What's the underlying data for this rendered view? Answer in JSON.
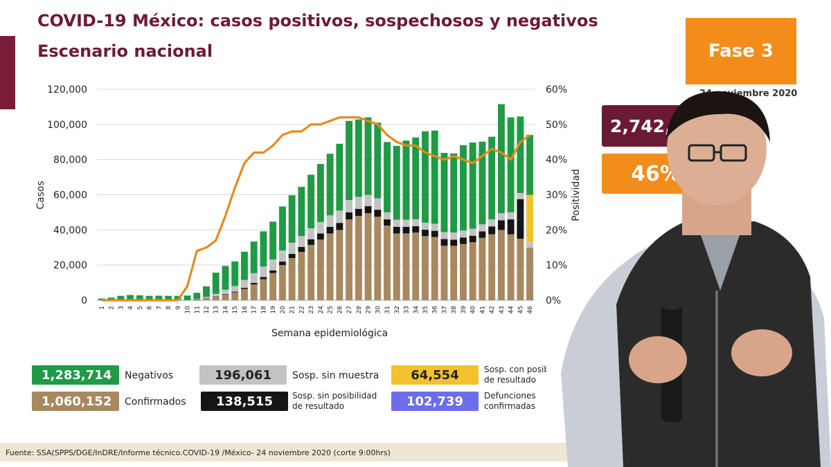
{
  "header": {
    "title": "COVID-19 México: casos positivos, sospechosos y negativos",
    "subtitle": "Escenario nacional"
  },
  "phase": {
    "label": "Fase 3",
    "date": "24 noviembre 2020"
  },
  "stats": {
    "total": "2,742,996",
    "positivity": "46%"
  },
  "legend": {
    "negativos_value": "1,283,714",
    "negativos_label": "Negativos",
    "sin_muestra_value": "196,061",
    "sin_muestra_label": "Sosp. sin muestra",
    "con_posibilidad_value": "64,554",
    "con_posibilidad_label_1": "Sosp. con posibilidad",
    "con_posibilidad_label_2": "de resultado",
    "confirmados_value": "1,060,152",
    "confirmados_label": "Confirmados",
    "sin_posibilidad_value": "138,515",
    "sin_posibilidad_label_1": "Sosp. sin posibilidad",
    "sin_posibilidad_label_2": "de resultado",
    "defunciones_value": "102,739",
    "defunciones_label_1": "Defunciones",
    "defunciones_label_2": "confirmadas"
  },
  "footer": {
    "source": "Fuente: SSA(SPPS/DGE/InDRE/Informe técnico.COVID-19 /México- 24 noviembre 2020 (corte 9:00hrs)"
  },
  "colors": {
    "title": "#6d1a35",
    "orange": "#f28c1b",
    "maroon": "#6a1a33",
    "confirmados": "#a8885f",
    "sin_posibilidad": "#151515",
    "sin_muestra": "#c3c3c3",
    "negativos": "#1f9a45",
    "con_posibilidad": "#f2c12e",
    "defunciones": "#6b6ee8"
  },
  "chart_data": {
    "type": "bar",
    "stacked": true,
    "xlabel": "Semana epidemiológica",
    "ylabel": "Casos",
    "y2label": "Positividad",
    "ylim": [
      0,
      120000
    ],
    "y2lim": [
      0,
      60
    ],
    "yticks": [
      "0",
      "20,000",
      "40,000",
      "60,000",
      "80,000",
      "100,000",
      "120,000"
    ],
    "y2ticks": [
      "0%",
      "10%",
      "20%",
      "30%",
      "40%",
      "50%",
      "60%"
    ],
    "categories": [
      "1",
      "2",
      "3",
      "4",
      "5",
      "6",
      "7",
      "8",
      "9",
      "10",
      "11",
      "12",
      "13",
      "14",
      "15",
      "16",
      "17",
      "18",
      "19",
      "20",
      "21",
      "22",
      "23",
      "24",
      "25",
      "26",
      "27",
      "28",
      "29",
      "30",
      "31",
      "32",
      "33",
      "34",
      "35",
      "36",
      "37",
      "38",
      "39",
      "40",
      "41",
      "42",
      "43",
      "44",
      "45",
      "46"
    ],
    "series": [
      {
        "key": "confirmados",
        "values": [
          0,
          0,
          0,
          0,
          0,
          0,
          0,
          0,
          0,
          100,
          400,
          1000,
          2000,
          3200,
          4500,
          6500,
          9000,
          12000,
          15500,
          20000,
          24000,
          27500,
          31500,
          34500,
          38000,
          40000,
          46000,
          48000,
          49500,
          47500,
          42500,
          38000,
          38000,
          38500,
          36500,
          36000,
          31000,
          31000,
          32000,
          33000,
          35500,
          37500,
          40000,
          37500,
          35000,
          30000
        ]
      },
      {
        "key": "sin_posibilidad",
        "values": [
          0,
          0,
          0,
          0,
          0,
          0,
          0,
          0,
          0,
          0,
          50,
          100,
          200,
          300,
          400,
          600,
          900,
          1200,
          1500,
          2000,
          2400,
          2800,
          3200,
          3500,
          3800,
          4000,
          4000,
          4000,
          4000,
          4000,
          3500,
          3800,
          3800,
          3600,
          3600,
          3500,
          3800,
          3500,
          3700,
          3700,
          3700,
          4500,
          5500,
          8500,
          22500,
          0
        ]
      },
      {
        "key": "sin_muestra",
        "values": [
          0,
          0,
          0,
          0,
          0,
          0,
          0,
          0,
          0,
          100,
          300,
          800,
          1500,
          2500,
          3200,
          4500,
          5500,
          6000,
          6200,
          6300,
          6300,
          6200,
          6200,
          6500,
          6500,
          7000,
          7000,
          6800,
          6500,
          6500,
          4000,
          4000,
          4000,
          4000,
          4000,
          4000,
          4000,
          4000,
          4000,
          4000,
          4000,
          4000,
          4000,
          4000,
          3500,
          3000
        ]
      },
      {
        "key": "con_posibilidad",
        "values": [
          0,
          0,
          0,
          0,
          0,
          0,
          0,
          0,
          0,
          0,
          0,
          0,
          0,
          0,
          0,
          0,
          0,
          0,
          0,
          0,
          0,
          0,
          0,
          0,
          0,
          0,
          0,
          0,
          0,
          0,
          0,
          0,
          0,
          0,
          0,
          0,
          0,
          0,
          0,
          0,
          0,
          0,
          0,
          0,
          0,
          27000
        ]
      },
      {
        "key": "negativos",
        "values": [
          1000,
          1500,
          2500,
          3000,
          2800,
          2500,
          2600,
          2500,
          2500,
          2500,
          3500,
          6000,
          12000,
          13500,
          14000,
          16000,
          18000,
          20000,
          21500,
          25000,
          27000,
          28000,
          30500,
          33000,
          35000,
          38000,
          45000,
          44000,
          44000,
          43000,
          40000,
          42000,
          45000,
          46500,
          52000,
          53000,
          45000,
          45000,
          48500,
          49000,
          47000,
          47000,
          62000,
          54000,
          43500,
          34000
        ]
      }
    ],
    "positividad": [
      0,
      0,
      0,
      0,
      0,
      0,
      0,
      0,
      0,
      4,
      14,
      15,
      17,
      24,
      32,
      39,
      42,
      42,
      44,
      47,
      48,
      48,
      50,
      50,
      51,
      52,
      52,
      52,
      51,
      50,
      47,
      45,
      44,
      44,
      42,
      41,
      40,
      41,
      40,
      39,
      41,
      43,
      42,
      40,
      45,
      47
    ]
  }
}
